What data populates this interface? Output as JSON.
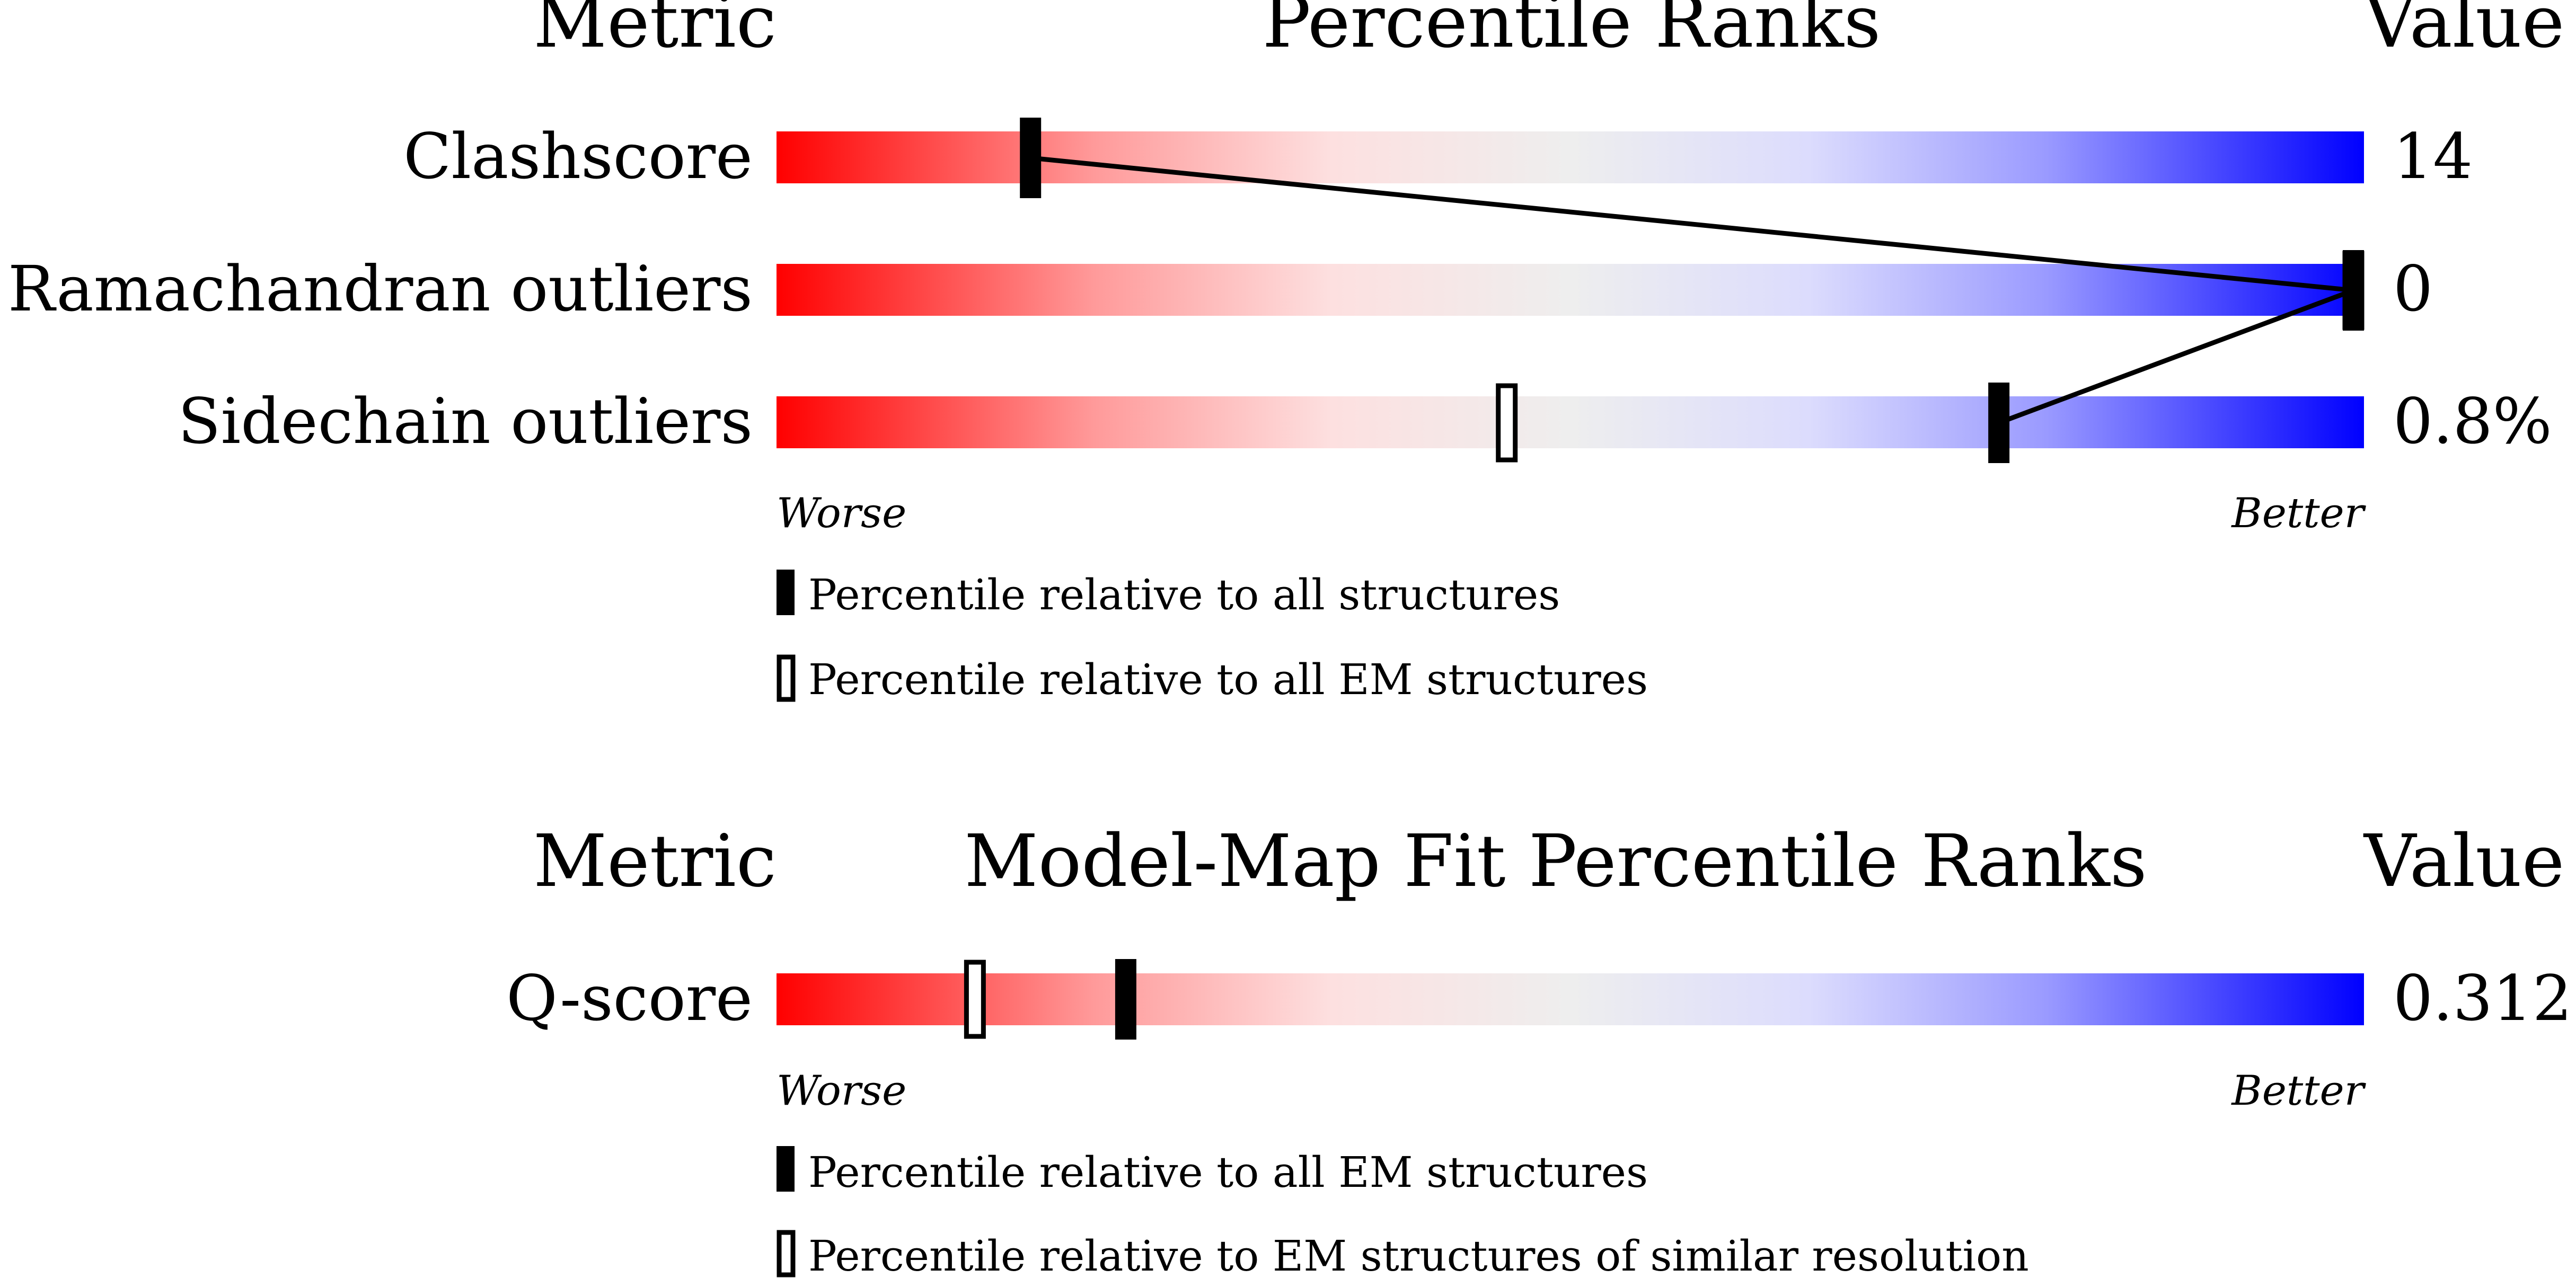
{
  "chart_data": [
    {
      "type": "bar",
      "headers": {
        "metric": "Metric",
        "title": "Percentile Ranks",
        "value": "Value"
      },
      "rows": [
        {
          "metric": "Clashscore",
          "value": "14",
          "all_percentile": 16,
          "em_percentile": null
        },
        {
          "metric": "Ramachandran outliers",
          "value": "0",
          "all_percentile": 100,
          "em_percentile": 100
        },
        {
          "metric": "Sidechain outliers",
          "value": "0.8%",
          "all_percentile": 77,
          "em_percentile": 46
        }
      ],
      "scale": {
        "min": 0,
        "max": 100,
        "low_label": "Worse",
        "high_label": "Better"
      },
      "legend": [
        {
          "marker": "filled",
          "label": "Percentile relative to all structures"
        },
        {
          "marker": "open",
          "label": "Percentile relative to all EM structures"
        }
      ]
    },
    {
      "type": "bar",
      "headers": {
        "metric": "Metric",
        "title": "Model-Map Fit Percentile Ranks",
        "value": "Value"
      },
      "rows": [
        {
          "metric": "Q-score",
          "value": "0.312",
          "all_percentile": 22,
          "em_percentile": 12.5
        }
      ],
      "scale": {
        "min": 0,
        "max": 100,
        "low_label": "Worse",
        "high_label": "Better"
      },
      "legend": [
        {
          "marker": "filled",
          "label": "Percentile relative to all EM structures"
        },
        {
          "marker": "open",
          "label": "Percentile relative to EM structures of similar resolution"
        }
      ]
    }
  ],
  "colors": {
    "worse": "#ff0000",
    "middle": "#eeeeee",
    "better": "#0000ff",
    "marker": "#000000"
  }
}
